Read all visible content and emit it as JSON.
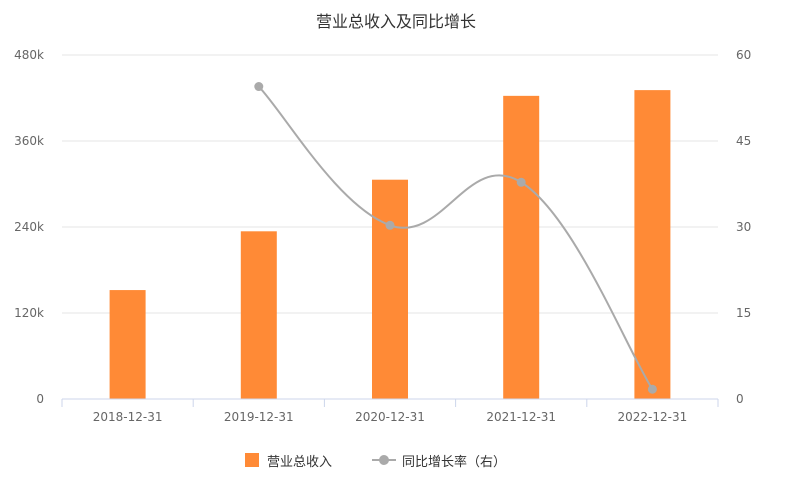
{
  "chart_data": {
    "type": "bar",
    "title": "营业总收入及同比增长",
    "categories": [
      "2018-12-31",
      "2019-12-31",
      "2020-12-31",
      "2021-12-31",
      "2022-12-31"
    ],
    "series": [
      {
        "name": "营业总收入",
        "type": "bar",
        "axis": "left",
        "color": "#ff8a36",
        "values": [
          152000,
          234000,
          306000,
          423000,
          431000
        ]
      },
      {
        "name": "同比增长率（右）",
        "type": "line",
        "axis": "right",
        "color": "#aaaaaa",
        "values": [
          null,
          54.5,
          30.3,
          37.8,
          1.7
        ]
      }
    ],
    "y_left": {
      "min": 0,
      "max": 480000,
      "ticks": [
        0,
        120000,
        240000,
        360000,
        480000
      ],
      "tick_labels": [
        "0",
        "120k",
        "240k",
        "360k",
        "480k"
      ]
    },
    "y_right": {
      "min": 0,
      "max": 60,
      "ticks": [
        0,
        15,
        30,
        45,
        60
      ],
      "tick_labels": [
        "0",
        "15",
        "30",
        "45",
        "60"
      ]
    },
    "grid": true,
    "legend_position": "bottom-center"
  }
}
